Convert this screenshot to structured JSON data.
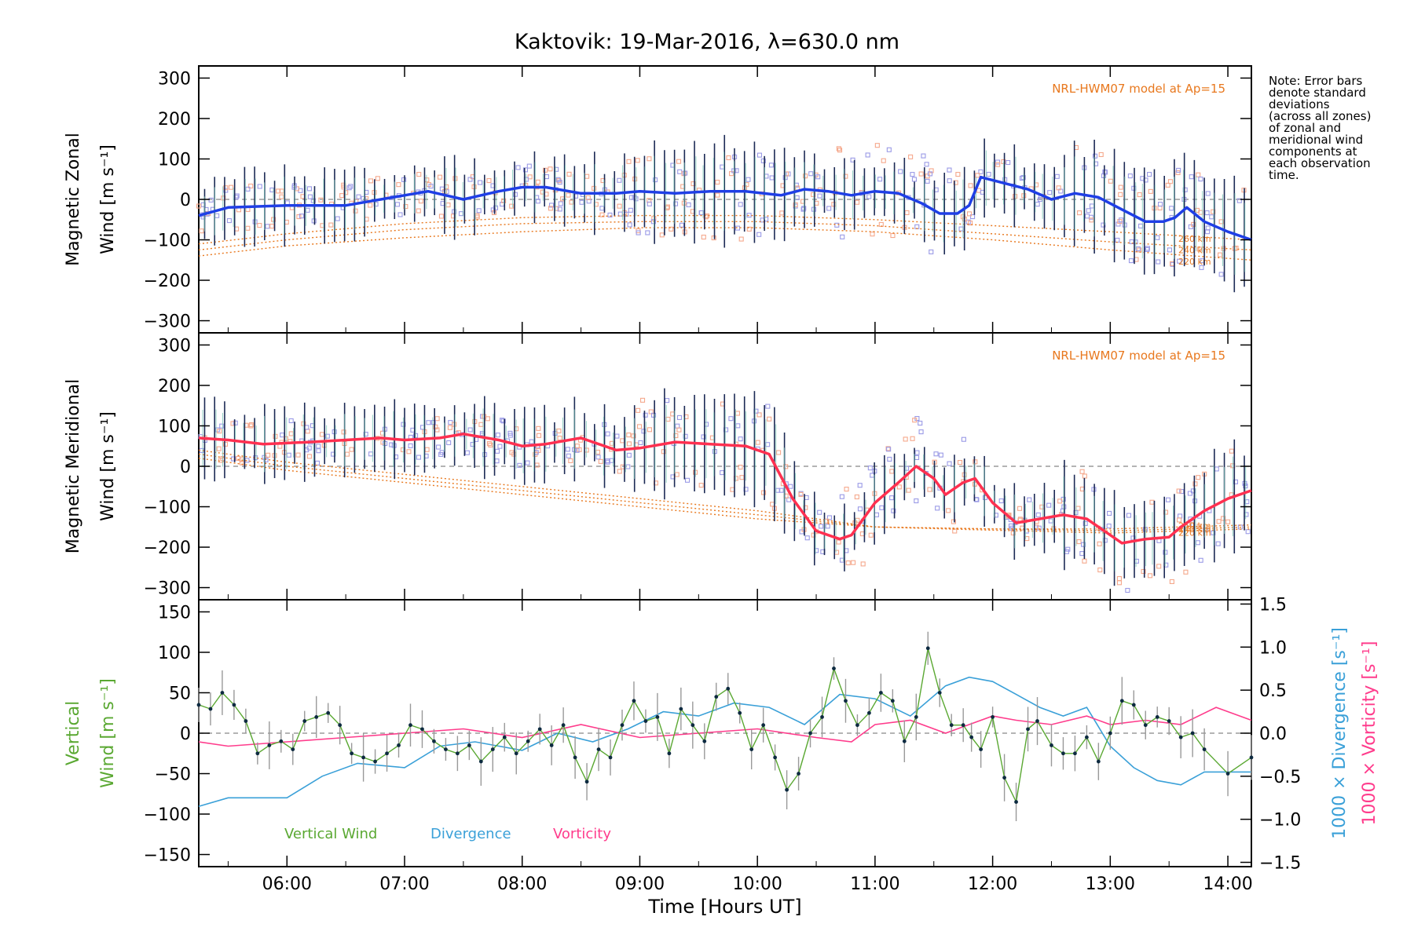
{
  "title": "Kaktovik: 19-Mar-2016, λ=630.0 nm",
  "xlabel": "Time [Hours UT]",
  "note_lines": [
    "Note: Error bars",
    "denote standard",
    "deviations",
    "(across all zones)",
    "of zonal and",
    "meridional wind",
    "components at",
    "each observation",
    "time."
  ],
  "colors": {
    "zonal": "#1f3fe6",
    "meridional": "#ff3050",
    "vertical": "#5aa832",
    "divergence": "#3aa0d8",
    "vorticity": "#ff3c8c",
    "model": "#e8781e",
    "scatter_blue": "#9a9ae6",
    "scatter_orange": "#f5a88c"
  },
  "chart_data": [
    {
      "type": "line",
      "panel": "zonal",
      "ylabel_lines": [
        "Magnetic Zonal",
        "Wind [m s⁻¹]"
      ],
      "ylim": [
        -330,
        330
      ],
      "yticks": [
        -300,
        -200,
        -100,
        0,
        100,
        200,
        300
      ],
      "xlim": [
        5.25,
        14.2
      ],
      "xticks": [
        "06:00",
        "07:00",
        "08:00",
        "09:00",
        "10:00",
        "11:00",
        "12:00",
        "13:00",
        "14:00"
      ],
      "model_label": "NRL-HWM07 model at Ap=15",
      "model_alt_labels": [
        "260 km",
        "240 km",
        "220 km"
      ],
      "series": [
        {
          "x": [
            5.25,
            5.5,
            6.0,
            6.5,
            7.0,
            7.2,
            7.5,
            7.8,
            8.0,
            8.2,
            8.5,
            8.8,
            9.0,
            9.3,
            9.6,
            9.9,
            10.2,
            10.4,
            10.6,
            10.8,
            11.0,
            11.2,
            11.4,
            11.55,
            11.7,
            11.8,
            11.9,
            12.1,
            12.3,
            12.5,
            12.7,
            12.9,
            13.1,
            13.3,
            13.45,
            13.55,
            13.65,
            13.8,
            14.0,
            14.2
          ],
          "y": [
            -40,
            -20,
            -15,
            -15,
            10,
            20,
            0,
            20,
            30,
            30,
            15,
            15,
            20,
            15,
            20,
            20,
            10,
            25,
            20,
            10,
            20,
            15,
            -10,
            -35,
            -35,
            -15,
            55,
            40,
            25,
            0,
            15,
            5,
            -25,
            -55,
            -55,
            -45,
            -20,
            -55,
            -80,
            -100
          ]
        }
      ],
      "model_curves": [
        {
          "x": [
            5.25,
            6.0,
            7.0,
            8.0,
            9.0,
            10.0,
            11.0,
            12.0,
            13.0,
            14.2
          ],
          "y": [
            -110,
            -85,
            -60,
            -45,
            -40,
            -40,
            -50,
            -65,
            -80,
            -100
          ]
        },
        {
          "x": [
            5.25,
            6.0,
            7.0,
            8.0,
            9.0,
            10.0,
            11.0,
            12.0,
            13.0,
            14.2
          ],
          "y": [
            -125,
            -100,
            -75,
            -60,
            -55,
            -55,
            -65,
            -85,
            -105,
            -125
          ]
        },
        {
          "x": [
            5.25,
            6.0,
            7.0,
            8.0,
            9.0,
            10.0,
            11.0,
            12.0,
            13.0,
            14.2
          ],
          "y": [
            -140,
            -115,
            -95,
            -80,
            -70,
            -70,
            -80,
            -100,
            -125,
            -150
          ]
        }
      ]
    },
    {
      "type": "line",
      "panel": "meridional",
      "ylabel_lines": [
        "Magnetic Meridional",
        "Wind [m s⁻¹]"
      ],
      "ylim": [
        -330,
        330
      ],
      "yticks": [
        -300,
        -200,
        -100,
        0,
        100,
        200,
        300
      ],
      "xlim": [
        5.25,
        14.2
      ],
      "model_label": "NRL-HWM07 model at Ap=15",
      "model_alt_labels": [
        "260 km",
        "240 km",
        "220 km"
      ],
      "series": [
        {
          "x": [
            5.25,
            5.5,
            5.8,
            6.2,
            6.5,
            6.8,
            7.0,
            7.3,
            7.5,
            7.8,
            8.0,
            8.2,
            8.5,
            8.8,
            9.0,
            9.3,
            9.6,
            9.9,
            10.1,
            10.3,
            10.5,
            10.7,
            10.8,
            11.0,
            11.2,
            11.35,
            11.5,
            11.6,
            11.75,
            11.85,
            12.0,
            12.2,
            12.4,
            12.6,
            12.8,
            13.0,
            13.1,
            13.3,
            13.5,
            13.6,
            13.8,
            14.0,
            14.2
          ],
          "y": [
            70,
            65,
            55,
            60,
            65,
            70,
            65,
            70,
            80,
            65,
            50,
            55,
            70,
            40,
            45,
            60,
            55,
            50,
            30,
            -80,
            -160,
            -180,
            -170,
            -90,
            -40,
            0,
            -30,
            -70,
            -40,
            -30,
            -90,
            -140,
            -130,
            -120,
            -130,
            -170,
            -190,
            -180,
            -175,
            -150,
            -110,
            -80,
            -60
          ]
        }
      ],
      "model_curves": [
        {
          "x": [
            5.25,
            6.0,
            7.0,
            8.0,
            9.0,
            10.0,
            10.5,
            11.0,
            12.0,
            13.0,
            14.2
          ],
          "y": [
            40,
            10,
            -20,
            -50,
            -80,
            -110,
            -130,
            -150,
            -155,
            -155,
            -145
          ]
        },
        {
          "x": [
            5.25,
            6.0,
            7.0,
            8.0,
            9.0,
            10.0,
            10.5,
            11.0,
            12.0,
            13.0,
            14.2
          ],
          "y": [
            30,
            0,
            -30,
            -60,
            -90,
            -120,
            -135,
            -150,
            -155,
            -160,
            -150
          ]
        },
        {
          "x": [
            5.25,
            6.0,
            7.0,
            8.0,
            9.0,
            10.0,
            10.5,
            11.0,
            12.0,
            13.0,
            14.2
          ],
          "y": [
            20,
            -10,
            -40,
            -70,
            -100,
            -130,
            -140,
            -150,
            -158,
            -165,
            -155
          ]
        }
      ]
    },
    {
      "type": "line",
      "panel": "vertical",
      "ylabel_left": [
        "Vertical",
        "Wind [m s⁻¹]"
      ],
      "ylabel_right1": "1000 × Divergence [s⁻¹]",
      "ylabel_right2": "1000 × Vorticity [s⁻¹]",
      "ylim": [
        -165,
        165
      ],
      "yticks": [
        -150,
        -100,
        -50,
        0,
        50,
        100,
        150
      ],
      "ylim_right": [
        -1.55,
        1.55
      ],
      "yticks_right": [
        -1.5,
        -1.0,
        -0.5,
        0.0,
        0.5,
        1.0,
        1.5
      ],
      "legend": [
        "Vertical Wind",
        "Divergence",
        "Vorticity"
      ],
      "series": [
        {
          "name": "Vertical Wind",
          "x": [
            5.25,
            5.35,
            5.45,
            5.55,
            5.65,
            5.75,
            5.85,
            5.95,
            6.05,
            6.15,
            6.25,
            6.35,
            6.45,
            6.55,
            6.65,
            6.75,
            6.85,
            6.95,
            7.05,
            7.15,
            7.25,
            7.35,
            7.45,
            7.55,
            7.65,
            7.75,
            7.85,
            7.95,
            8.05,
            8.15,
            8.25,
            8.35,
            8.45,
            8.55,
            8.65,
            8.75,
            8.85,
            8.95,
            9.05,
            9.15,
            9.25,
            9.35,
            9.45,
            9.55,
            9.65,
            9.75,
            9.85,
            9.95,
            10.05,
            10.15,
            10.25,
            10.35,
            10.45,
            10.55,
            10.65,
            10.75,
            10.85,
            10.95,
            11.05,
            11.15,
            11.25,
            11.35,
            11.45,
            11.55,
            11.65,
            11.75,
            11.82,
            11.9,
            12.0,
            12.1,
            12.2,
            12.3,
            12.38,
            12.5,
            12.6,
            12.7,
            12.8,
            12.9,
            13.0,
            13.1,
            13.2,
            13.3,
            13.4,
            13.5,
            13.6,
            13.7,
            13.8,
            14.0,
            14.2
          ],
          "y": [
            35,
            30,
            50,
            35,
            15,
            -25,
            -15,
            -10,
            -20,
            15,
            20,
            25,
            10,
            -25,
            -30,
            -35,
            -25,
            -15,
            10,
            5,
            -10,
            -20,
            -25,
            -15,
            -35,
            -20,
            -5,
            -25,
            -10,
            5,
            -15,
            10,
            -30,
            -60,
            -20,
            -30,
            10,
            40,
            15,
            20,
            -25,
            30,
            10,
            -10,
            45,
            55,
            25,
            -20,
            10,
            -30,
            -70,
            -50,
            0,
            20,
            80,
            40,
            10,
            25,
            50,
            40,
            -10,
            20,
            105,
            50,
            10,
            10,
            -5,
            -20,
            20,
            -55,
            -85,
            5,
            15,
            -15,
            -25,
            -25,
            -5,
            -35,
            0,
            40,
            35,
            10,
            20,
            15,
            -5,
            0,
            -20,
            -50,
            -30
          ]
        },
        {
          "name": "Divergence",
          "x": [
            5.25,
            5.5,
            6.0,
            6.3,
            6.6,
            7.0,
            7.3,
            7.6,
            8.0,
            8.3,
            8.6,
            8.9,
            9.2,
            9.5,
            9.8,
            10.1,
            10.4,
            10.7,
            11.0,
            11.3,
            11.6,
            11.8,
            12.0,
            12.2,
            12.4,
            12.6,
            12.8,
            13.0,
            13.2,
            13.4,
            13.6,
            13.8,
            14.2
          ],
          "y": [
            -0.85,
            -0.75,
            -0.75,
            -0.5,
            -0.35,
            -0.4,
            -0.15,
            -0.1,
            -0.2,
            0.0,
            -0.1,
            0.05,
            0.25,
            0.2,
            0.35,
            0.3,
            0.1,
            0.45,
            0.4,
            0.2,
            0.55,
            0.65,
            0.6,
            0.45,
            0.3,
            0.2,
            0.3,
            -0.15,
            -0.4,
            -0.55,
            -0.6,
            -0.45,
            -0.45
          ]
        },
        {
          "name": "Vorticity",
          "x": [
            5.25,
            5.5,
            6.0,
            6.5,
            7.0,
            7.5,
            8.0,
            8.5,
            9.0,
            9.5,
            10.0,
            10.5,
            10.8,
            11.0,
            11.3,
            11.6,
            11.8,
            12.0,
            12.2,
            12.5,
            12.8,
            13.0,
            13.3,
            13.6,
            13.9,
            14.2
          ],
          "y": [
            -0.1,
            -0.15,
            -0.1,
            -0.05,
            0.0,
            0.05,
            -0.05,
            0.1,
            -0.05,
            0.0,
            0.05,
            -0.05,
            -0.1,
            0.1,
            0.15,
            0.0,
            0.1,
            0.2,
            0.15,
            0.1,
            0.2,
            0.1,
            0.15,
            0.1,
            0.3,
            0.15
          ]
        }
      ]
    }
  ]
}
